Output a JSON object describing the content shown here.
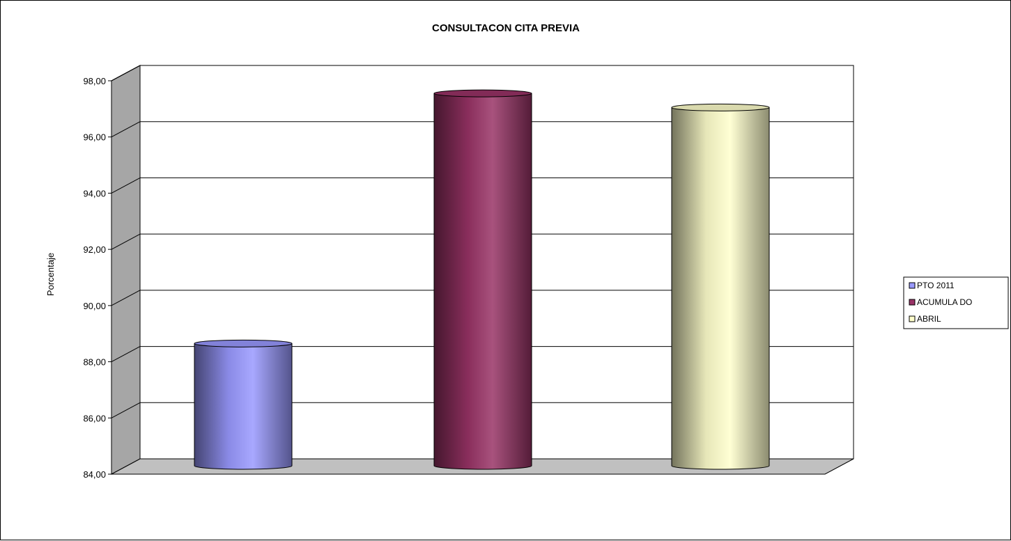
{
  "chart_data": {
    "type": "bar",
    "style": "3d-cylinder",
    "title": "CONSULTACON CITA PREVIA",
    "xlabel": "",
    "ylabel": "Porcentaje",
    "ylim": [
      84,
      98
    ],
    "yticks": [
      "84,00",
      "86,00",
      "88,00",
      "90,00",
      "92,00",
      "94,00",
      "96,00",
      "98,00"
    ],
    "grid": true,
    "legend_position": "right",
    "series": [
      {
        "name": "PTO  2011",
        "value": 88.7,
        "color": "#9999ff"
      },
      {
        "name": "ACUMULA DO",
        "value": 97.6,
        "color": "#993366"
      },
      {
        "name": "ABRIL",
        "value": 97.1,
        "color": "#ffffcc"
      }
    ]
  }
}
